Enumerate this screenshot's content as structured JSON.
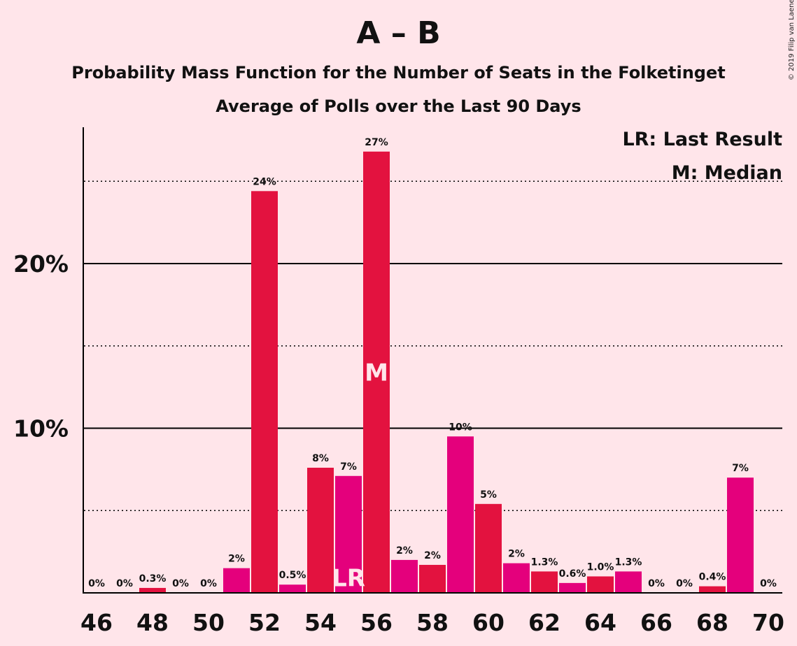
{
  "chart_data": {
    "type": "bar",
    "title": "A – B",
    "subtitle_lines": [
      "Probability Mass Function for the Number of Seats in the Folketinget",
      "Average of Polls over the Last 90 Days"
    ],
    "categories": [
      46,
      47,
      48,
      49,
      50,
      51,
      52,
      53,
      54,
      55,
      56,
      57,
      58,
      59,
      60,
      61,
      62,
      63,
      64,
      65,
      66,
      67,
      68,
      69,
      70
    ],
    "values": [
      0,
      0,
      0.3,
      0,
      0,
      1.5,
      24.4,
      0.5,
      7.6,
      7.1,
      26.8,
      2.0,
      1.7,
      9.5,
      5.4,
      1.8,
      1.3,
      0.6,
      1.0,
      1.3,
      0,
      0,
      0.4,
      7.0,
      0
    ],
    "data_labels": [
      "0%",
      "0%",
      "0.3%",
      "0%",
      "0%",
      "2%",
      "24%",
      "0.5%",
      "8%",
      "7%",
      "27%",
      "2%",
      "2%",
      "10%",
      "5%",
      "2%",
      "1.3%",
      "0.6%",
      "1.0%",
      "1.3%",
      "0%",
      "0%",
      "0.4%",
      "7%",
      "0%"
    ],
    "x_tick_labels": [
      "46",
      "48",
      "50",
      "52",
      "54",
      "56",
      "58",
      "60",
      "62",
      "64",
      "66",
      "68",
      "70"
    ],
    "y_tick_labels": [
      "10%",
      "20%"
    ],
    "ylim": [
      0,
      29
    ],
    "grid": true,
    "legend": [
      "LR: Last Result",
      "M: Median"
    ],
    "legend_position": "top-right",
    "markers": [
      {
        "seats": 55,
        "label": "LR"
      },
      {
        "seats": 56,
        "label": "M"
      }
    ],
    "colors": {
      "background": "#FFE5EA",
      "bar_even": "#E3123F",
      "bar_odd": "#E4007C",
      "grid": "#000000",
      "marker_text": "#FFE5EA"
    },
    "copyright": "© 2019 Filip van Laenen"
  }
}
